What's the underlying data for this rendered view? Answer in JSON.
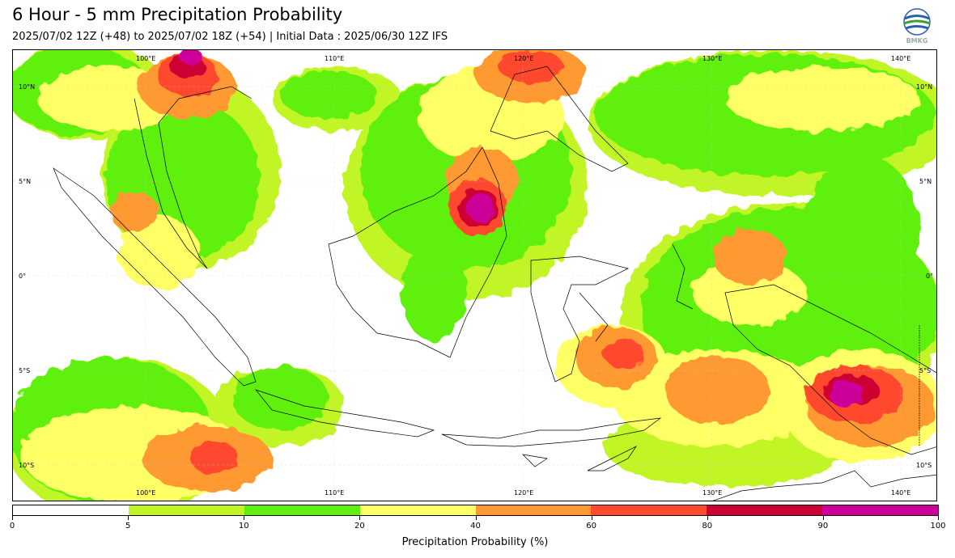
{
  "header": {
    "title": "6 Hour - 5 mm Precipitation Probability",
    "subtitle": "2025/07/02 12Z (+48) to 2025/07/02 18Z (+54) | Initial Data : 2025/06/30 12Z IFS",
    "logo_text": "BMKG"
  },
  "map": {
    "lon_labels_top": [
      "100°E",
      "110°E",
      "120°E",
      "130°E",
      "140°E"
    ],
    "lon_labels_bottom": [
      "100°E",
      "110°E",
      "120°E",
      "130°E",
      "140°E"
    ],
    "lat_labels_left": [
      "10°N",
      "5°N",
      "0°",
      "5°S",
      "10°S"
    ],
    "lat_labels_right": [
      "10°N",
      "5°N",
      "0°",
      "5°S",
      "10°S"
    ],
    "extent": {
      "lon_min": 92.3,
      "lon_max": 141.5,
      "lat_min": -12.0,
      "lat_max": 12.0
    }
  },
  "colorbar": {
    "label": "Precipitation Probability (%)",
    "ticks": [
      "0",
      "5",
      "10",
      "20",
      "40",
      "60",
      "80",
      "90",
      "100"
    ],
    "colors": [
      "#ffffff",
      "#c2f526",
      "#5ef10d",
      "#ffff66",
      "#ff9933",
      "#ff4a2e",
      "#cc0033",
      "#cc0099"
    ]
  }
}
